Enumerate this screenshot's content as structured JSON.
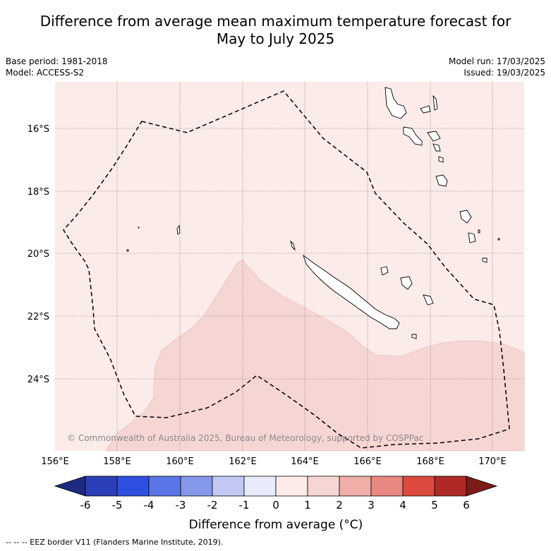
{
  "header": {
    "title_line1": "Difference from average mean maximum temperature forecast for",
    "title_line2": "May to July 2025",
    "base_period": "Base period: 1981-2018",
    "model": "Model: ACCESS-S2",
    "model_run": "Model run: 17/03/2025",
    "issued": "Issued: 19/03/2025"
  },
  "map": {
    "lon_ticks": [
      "156°E",
      "158°E",
      "160°E",
      "162°E",
      "164°E",
      "166°E",
      "168°E",
      "170°E"
    ],
    "lat_ticks": [
      "16°S",
      "18°S",
      "20°S",
      "22°S",
      "24°S"
    ],
    "lon_range": [
      156,
      171
    ],
    "lat_range": [
      -26.3,
      -14.5
    ],
    "fill_categories": {
      "0_to_1": "#fbebe9",
      "1_to_2": "#f6d6d3"
    },
    "copyright": "© Commonwealth of Australia 2025, Bureau of Meteorology, supported by COSPPac"
  },
  "colorbar": {
    "ticks": [
      "-6",
      "-5",
      "-4",
      "-3",
      "-2",
      "-1",
      "0",
      "1",
      "2",
      "3",
      "4",
      "5",
      "6"
    ],
    "colors": [
      "#1c2a80",
      "#2a3fb8",
      "#2f4fe0",
      "#5a76e6",
      "#8597ea",
      "#c0c8f3",
      "#e8ecfa",
      "#fcebe8",
      "#f6d6d3",
      "#efaea8",
      "#e88880",
      "#dd4a40",
      "#b02a25",
      "#7a1c18"
    ],
    "label": "Difference from average (°C)"
  },
  "footer": {
    "legend": "--  --  -- EEZ border V11 (Flanders Marine Institute, 2019)."
  }
}
